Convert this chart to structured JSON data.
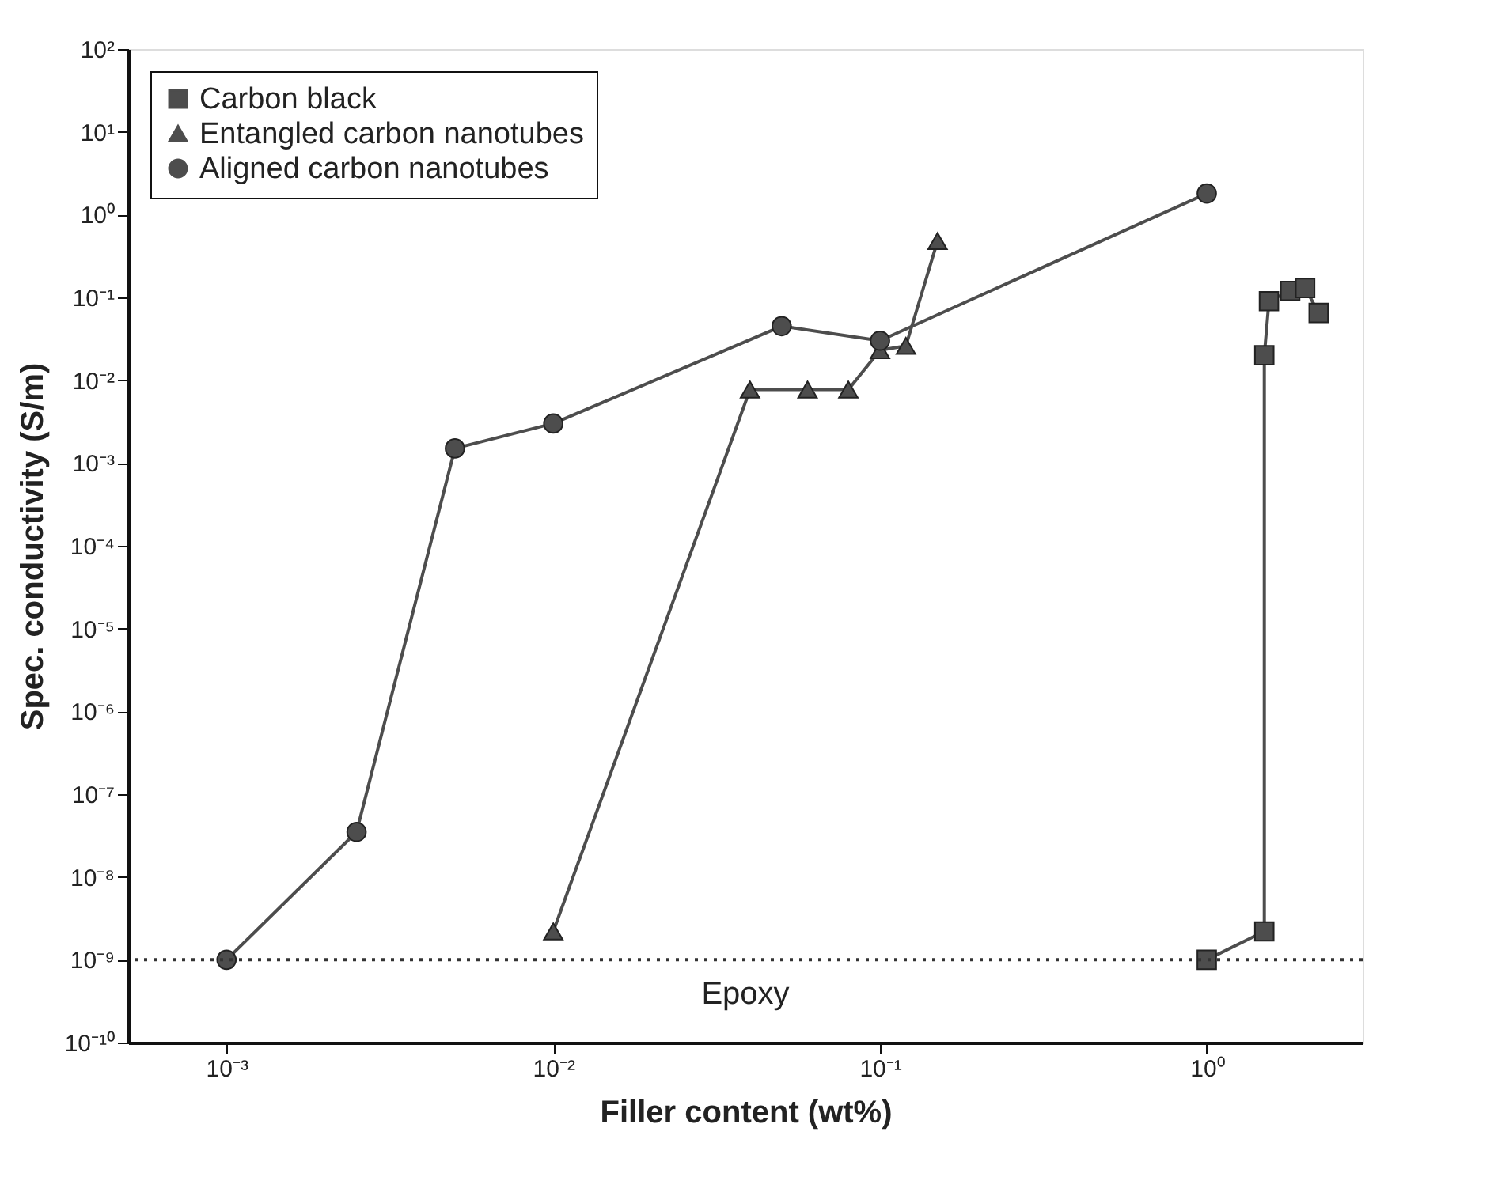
{
  "chart_data": {
    "type": "line",
    "xlabel": "Filler content (wt%)",
    "ylabel": "Spec. conductivity (S/m)",
    "log": "xy",
    "xlim": [
      0.0005,
      3
    ],
    "ylim": [
      1e-10,
      100
    ],
    "xticks": [
      {
        "value": 0.001,
        "label": "10⁻³"
      },
      {
        "value": 0.01,
        "label": "10⁻²"
      },
      {
        "value": 0.1,
        "label": "10⁻¹"
      },
      {
        "value": 1,
        "label": "10⁰"
      }
    ],
    "yticks": [
      {
        "value": 1e-10,
        "label": "10⁻¹⁰"
      },
      {
        "value": 1e-09,
        "label": "10⁻⁹"
      },
      {
        "value": 1e-08,
        "label": "10⁻⁸"
      },
      {
        "value": 1e-07,
        "label": "10⁻⁷"
      },
      {
        "value": 1e-06,
        "label": "10⁻⁶"
      },
      {
        "value": 1e-05,
        "label": "10⁻⁵"
      },
      {
        "value": 0.0001,
        "label": "10⁻⁴"
      },
      {
        "value": 0.001,
        "label": "10⁻³"
      },
      {
        "value": 0.01,
        "label": "10⁻²"
      },
      {
        "value": 0.1,
        "label": "10⁻¹"
      },
      {
        "value": 1,
        "label": "10⁰"
      },
      {
        "value": 10,
        "label": "10¹"
      },
      {
        "value": 100,
        "label": "10²"
      }
    ],
    "grid": false,
    "legend": "top left",
    "ref_lines": [
      {
        "axis": "y",
        "value": 1e-09,
        "label": "Epoxy",
        "line_style": "dotted",
        "color": "#333333"
      }
    ],
    "series": [
      {
        "name": "Carbon black",
        "color": "#4d4d4d",
        "marker": "square",
        "x": [
          1,
          1.5,
          1.5,
          1.55,
          1.8,
          2.0,
          2.2
        ],
        "values": [
          1e-09,
          2.2e-09,
          0.02,
          0.09,
          0.12,
          0.13,
          0.065
        ]
      },
      {
        "name": "Entangled carbon nanotubes",
        "color": "#4d4d4d",
        "marker": "triangle",
        "x": [
          0.01,
          0.04,
          0.06,
          0.08,
          0.1,
          0.12,
          0.15
        ],
        "values": [
          2.2e-09,
          0.0077,
          0.0077,
          0.0077,
          0.023,
          0.026,
          0.48
        ]
      },
      {
        "name": "Aligned carbon nanotubes",
        "color": "#4d4d4d",
        "marker": "circle",
        "x": [
          0.001,
          0.0025,
          0.005,
          0.01,
          0.05,
          0.1,
          1
        ],
        "values": [
          1e-09,
          3.5e-08,
          0.0015,
          0.003,
          0.045,
          0.03,
          1.8
        ]
      }
    ]
  }
}
